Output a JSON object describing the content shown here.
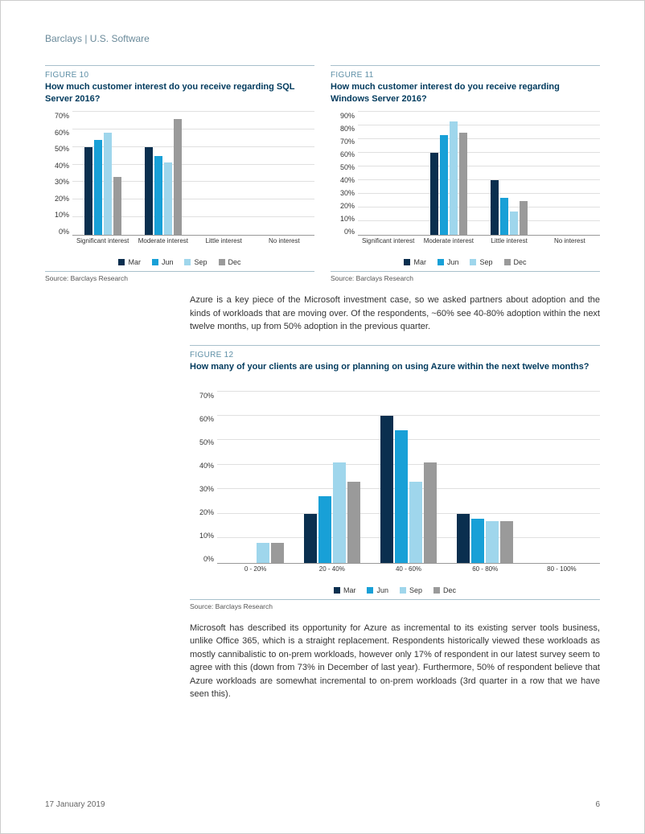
{
  "header": "Barclays | U.S. Software",
  "colors": {
    "mar": "#0a2f4f",
    "jun": "#18a0d7",
    "sep": "#9fd6ec",
    "dec": "#9a9a9a",
    "grid": "#e0e0e0",
    "accent_line": "#a8c0cc",
    "title": "#003a5d",
    "fig_num": "#5e8fa6"
  },
  "legend_labels": {
    "mar": "Mar",
    "jun": "Jun",
    "sep": "Sep",
    "dec": "Dec"
  },
  "source_text": "Source: Barclays Research",
  "figure10": {
    "num": "FIGURE 10",
    "title": "How much customer interest do you receive regarding SQL Server 2016?",
    "type": "bar",
    "ylim": [
      0,
      70
    ],
    "ytick_step": 10,
    "ytick_suffix": "%",
    "categories": [
      "Significant interest",
      "Moderate interest",
      "Little interest",
      "No interest"
    ],
    "series": {
      "mar": [
        50,
        50,
        0,
        0
      ],
      "jun": [
        54,
        45,
        0,
        0
      ],
      "sep": [
        58,
        41,
        0,
        0
      ],
      "dec": [
        33,
        66,
        0,
        0
      ]
    }
  },
  "figure11": {
    "num": "FIGURE 11",
    "title": "How much customer interest do you receive regarding Windows Server 2016?",
    "type": "bar",
    "ylim": [
      0,
      90
    ],
    "ytick_step": 10,
    "ytick_suffix": "%",
    "categories": [
      "Significant interest",
      "Moderate interest",
      "Little interest",
      "No interest"
    ],
    "series": {
      "mar": [
        0,
        60,
        40,
        0
      ],
      "jun": [
        0,
        73,
        27,
        0
      ],
      "sep": [
        0,
        83,
        17,
        0
      ],
      "dec": [
        0,
        75,
        25,
        0
      ]
    }
  },
  "para1": "Azure is a key piece of the Microsoft investment case, so we asked partners about adoption and the kinds of workloads that are moving over. Of the respondents, ~60% see 40-80% adoption within the next twelve months, up from 50% adoption in the previous quarter.",
  "figure12": {
    "num": "FIGURE 12",
    "title": "How many of your clients are using or planning on using Azure within the next twelve months?",
    "type": "bar",
    "ylim": [
      0,
      70
    ],
    "ytick_step": 10,
    "ytick_suffix": "%",
    "categories": [
      "0 - 20%",
      "20 - 40%",
      "40 - 60%",
      "60 - 80%",
      "80 - 100%"
    ],
    "series": {
      "mar": [
        0,
        20,
        60,
        20,
        0
      ],
      "jun": [
        0,
        27,
        54,
        18,
        0
      ],
      "sep": [
        8,
        41,
        33,
        17,
        0
      ],
      "dec": [
        8,
        33,
        41,
        17,
        0
      ]
    }
  },
  "para2": "Microsoft has described its opportunity for Azure as incremental to its existing server tools business, unlike Office 365, which is a straight replacement. Respondents historically viewed these workloads as mostly cannibalistic to on-prem workloads, however only 17% of respondent in our latest survey seem to agree with this (down from 73% in December of last year). Furthermore, 50% of respondent believe that Azure workloads are somewhat incremental to on-prem workloads (3rd quarter in a row that we have seen this).",
  "footer": {
    "date": "17 January 2019",
    "page": "6"
  }
}
